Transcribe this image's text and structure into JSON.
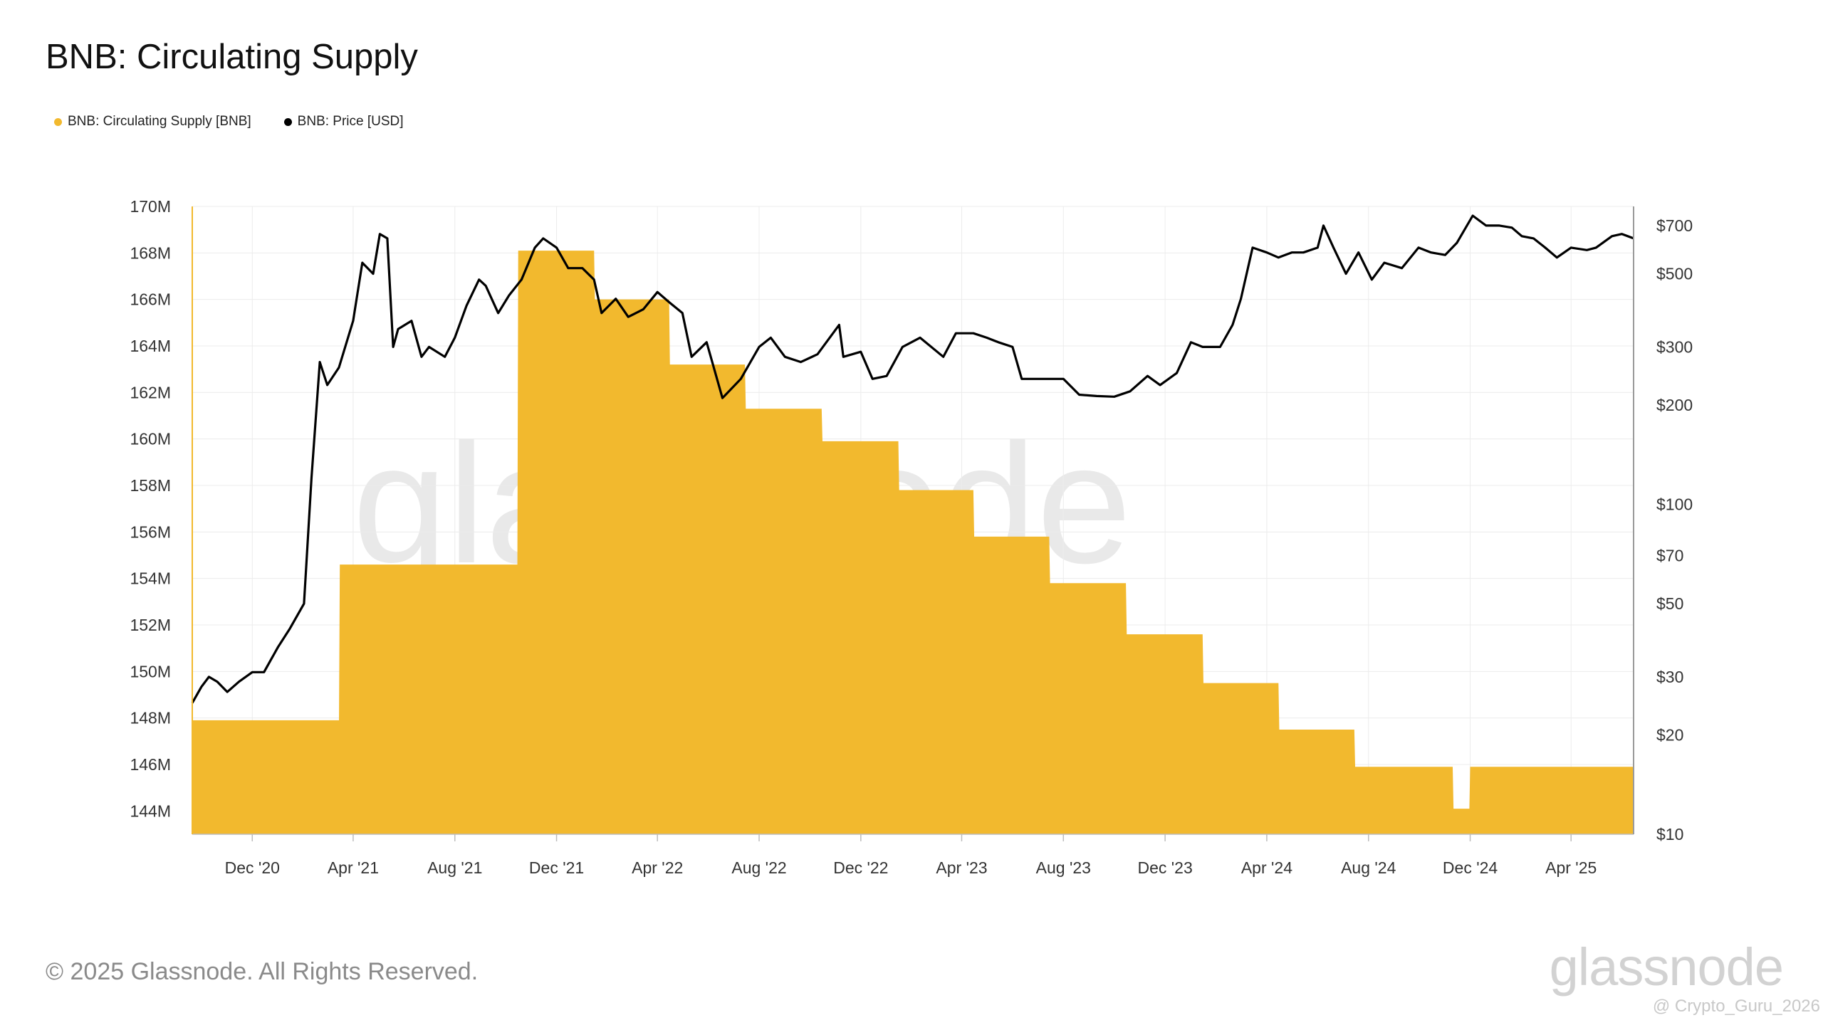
{
  "page": {
    "title": "BNB: Circulating Supply",
    "footer": "© 2025 Glassnode. All Rights Reserved.",
    "brand": "glassnode",
    "watermark": "glassnode",
    "credit": "@ Crypto_Guru_2026"
  },
  "colors": {
    "supply": "#F2B92E",
    "price": "#000000",
    "grid": "#ececec",
    "axis": "#bdbdbd"
  },
  "chart_data": {
    "type": "area",
    "title": "BNB: Circulating Supply",
    "legend": [
      {
        "name": "BNB: Circulating Supply [BNB]",
        "color": "#F2B92E"
      },
      {
        "name": "BNB: Price [USD]",
        "color": "#000000"
      }
    ],
    "x_range": [
      "2020-09-20",
      "2025-06-15"
    ],
    "x_ticks": [
      "Dec '20",
      "Apr '21",
      "Aug '21",
      "Dec '21",
      "Apr '22",
      "Aug '22",
      "Dec '22",
      "Apr '23",
      "Aug '23",
      "Dec '23",
      "Apr '24",
      "Aug '24",
      "Dec '24",
      "Apr '25"
    ],
    "y_left": {
      "scale": "linear",
      "range": [
        143,
        170
      ],
      "ticks": [
        "144M",
        "146M",
        "148M",
        "150M",
        "152M",
        "154M",
        "156M",
        "158M",
        "160M",
        "162M",
        "164M",
        "166M",
        "168M",
        "170M"
      ],
      "unit": "M BNB"
    },
    "y_right": {
      "scale": "log",
      "range": [
        10,
        800
      ],
      "ticks": [
        "$10",
        "$20",
        "$30",
        "$50",
        "$70",
        "$100",
        "$200",
        "$300",
        "$500",
        "$700"
      ]
    },
    "series": [
      {
        "name": "BNB: Circulating Supply [BNB]",
        "type": "area",
        "unit": "M",
        "points": [
          [
            "2020-09-20",
            147.9
          ],
          [
            "2021-03-15",
            147.9
          ],
          [
            "2021-03-16",
            154.6
          ],
          [
            "2021-10-15",
            154.6
          ],
          [
            "2021-10-16",
            168.1
          ],
          [
            "2022-01-15",
            168.1
          ],
          [
            "2022-01-16",
            166.0
          ],
          [
            "2022-04-15",
            166.0
          ],
          [
            "2022-04-16",
            163.2
          ],
          [
            "2022-07-15",
            163.2
          ],
          [
            "2022-07-16",
            161.3
          ],
          [
            "2022-10-15",
            161.3
          ],
          [
            "2022-10-16",
            159.9
          ],
          [
            "2023-01-15",
            159.9
          ],
          [
            "2023-01-16",
            157.8
          ],
          [
            "2023-04-15",
            157.8
          ],
          [
            "2023-04-16",
            155.8
          ],
          [
            "2023-07-15",
            155.8
          ],
          [
            "2023-07-16",
            153.8
          ],
          [
            "2023-10-15",
            153.8
          ],
          [
            "2023-10-16",
            151.6
          ],
          [
            "2024-01-15",
            151.6
          ],
          [
            "2024-01-16",
            149.5
          ],
          [
            "2024-04-15",
            149.5
          ],
          [
            "2024-04-16",
            147.5
          ],
          [
            "2024-07-15",
            147.5
          ],
          [
            "2024-07-16",
            145.9
          ],
          [
            "2024-11-10",
            145.9
          ],
          [
            "2024-11-11",
            144.1
          ],
          [
            "2024-11-30",
            144.1
          ],
          [
            "2024-12-01",
            145.9
          ],
          [
            "2025-06-15",
            145.9
          ]
        ]
      },
      {
        "name": "BNB: Price [USD]",
        "type": "line",
        "unit": "USD",
        "points": [
          [
            "2020-09-20",
            25
          ],
          [
            "2020-10-01",
            28
          ],
          [
            "2020-10-10",
            30
          ],
          [
            "2020-10-20",
            29
          ],
          [
            "2020-11-01",
            27
          ],
          [
            "2020-11-15",
            29
          ],
          [
            "2020-12-01",
            31
          ],
          [
            "2020-12-15",
            31
          ],
          [
            "2021-01-01",
            37
          ],
          [
            "2021-01-15",
            42
          ],
          [
            "2021-02-01",
            50
          ],
          [
            "2021-02-10",
            120
          ],
          [
            "2021-02-20",
            270
          ],
          [
            "2021-03-01",
            230
          ],
          [
            "2021-03-15",
            260
          ],
          [
            "2021-04-01",
            360
          ],
          [
            "2021-04-12",
            540
          ],
          [
            "2021-04-25",
            500
          ],
          [
            "2021-05-03",
            660
          ],
          [
            "2021-05-12",
            640
          ],
          [
            "2021-05-19",
            300
          ],
          [
            "2021-05-25",
            340
          ],
          [
            "2021-06-10",
            360
          ],
          [
            "2021-06-22",
            280
          ],
          [
            "2021-07-01",
            300
          ],
          [
            "2021-07-20",
            280
          ],
          [
            "2021-08-01",
            320
          ],
          [
            "2021-08-15",
            400
          ],
          [
            "2021-08-30",
            480
          ],
          [
            "2021-09-07",
            460
          ],
          [
            "2021-09-22",
            380
          ],
          [
            "2021-10-05",
            430
          ],
          [
            "2021-10-20",
            480
          ],
          [
            "2021-11-05",
            600
          ],
          [
            "2021-11-15",
            640
          ],
          [
            "2021-12-01",
            600
          ],
          [
            "2021-12-15",
            520
          ],
          [
            "2022-01-01",
            520
          ],
          [
            "2022-01-15",
            480
          ],
          [
            "2022-01-24",
            380
          ],
          [
            "2022-02-10",
            420
          ],
          [
            "2022-02-25",
            370
          ],
          [
            "2022-03-15",
            390
          ],
          [
            "2022-04-01",
            440
          ],
          [
            "2022-04-15",
            410
          ],
          [
            "2022-05-01",
            380
          ],
          [
            "2022-05-12",
            280
          ],
          [
            "2022-05-30",
            310
          ],
          [
            "2022-06-18",
            210
          ],
          [
            "2022-07-10",
            240
          ],
          [
            "2022-08-01",
            300
          ],
          [
            "2022-08-15",
            320
          ],
          [
            "2022-09-01",
            280
          ],
          [
            "2022-09-20",
            270
          ],
          [
            "2022-10-10",
            285
          ],
          [
            "2022-11-05",
            350
          ],
          [
            "2022-11-10",
            280
          ],
          [
            "2022-12-01",
            290
          ],
          [
            "2022-12-15",
            240
          ],
          [
            "2023-01-01",
            245
          ],
          [
            "2023-01-20",
            300
          ],
          [
            "2023-02-10",
            320
          ],
          [
            "2023-03-10",
            280
          ],
          [
            "2023-03-25",
            330
          ],
          [
            "2023-04-15",
            330
          ],
          [
            "2023-05-01",
            320
          ],
          [
            "2023-05-15",
            310
          ],
          [
            "2023-06-01",
            300
          ],
          [
            "2023-06-12",
            240
          ],
          [
            "2023-07-01",
            240
          ],
          [
            "2023-08-01",
            240
          ],
          [
            "2023-08-20",
            215
          ],
          [
            "2023-09-10",
            213
          ],
          [
            "2023-10-01",
            212
          ],
          [
            "2023-10-20",
            220
          ],
          [
            "2023-11-10",
            245
          ],
          [
            "2023-11-25",
            230
          ],
          [
            "2023-12-15",
            250
          ],
          [
            "2024-01-01",
            310
          ],
          [
            "2024-01-15",
            300
          ],
          [
            "2024-02-05",
            300
          ],
          [
            "2024-02-20",
            350
          ],
          [
            "2024-03-01",
            420
          ],
          [
            "2024-03-15",
            600
          ],
          [
            "2024-04-01",
            580
          ],
          [
            "2024-04-15",
            560
          ],
          [
            "2024-05-01",
            580
          ],
          [
            "2024-05-15",
            580
          ],
          [
            "2024-06-01",
            600
          ],
          [
            "2024-06-08",
            700
          ],
          [
            "2024-06-20",
            600
          ],
          [
            "2024-07-05",
            500
          ],
          [
            "2024-07-20",
            580
          ],
          [
            "2024-08-05",
            480
          ],
          [
            "2024-08-20",
            540
          ],
          [
            "2024-09-10",
            520
          ],
          [
            "2024-09-30",
            600
          ],
          [
            "2024-10-15",
            580
          ],
          [
            "2024-11-01",
            570
          ],
          [
            "2024-11-15",
            620
          ],
          [
            "2024-12-04",
            750
          ],
          [
            "2024-12-20",
            700
          ],
          [
            "2025-01-05",
            700
          ],
          [
            "2025-01-20",
            690
          ],
          [
            "2025-02-01",
            650
          ],
          [
            "2025-02-15",
            640
          ],
          [
            "2025-03-01",
            600
          ],
          [
            "2025-03-15",
            560
          ],
          [
            "2025-04-01",
            600
          ],
          [
            "2025-04-20",
            590
          ],
          [
            "2025-05-01",
            600
          ],
          [
            "2025-05-20",
            650
          ],
          [
            "2025-06-01",
            660
          ],
          [
            "2025-06-15",
            640
          ]
        ]
      }
    ]
  }
}
